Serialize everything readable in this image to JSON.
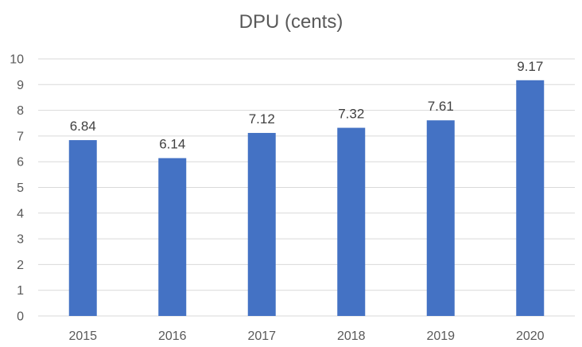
{
  "chart_data": {
    "type": "bar",
    "title": "DPU (cents)",
    "xlabel": "",
    "ylabel": "",
    "categories": [
      "2015",
      "2016",
      "2017",
      "2018",
      "2019",
      "2020"
    ],
    "values": [
      6.84,
      6.14,
      7.12,
      7.32,
      7.61,
      9.17
    ],
    "data_labels": [
      "6.84",
      "6.14",
      "7.12",
      "7.32",
      "7.61",
      "9.17"
    ],
    "ylim": [
      0,
      10
    ],
    "yticks": [
      "0",
      "1",
      "2",
      "3",
      "4",
      "5",
      "6",
      "7",
      "8",
      "9",
      "10"
    ],
    "grid": true,
    "legend": "none",
    "bar_color": "#4472C4",
    "grid_color": "#D9D9D9"
  }
}
